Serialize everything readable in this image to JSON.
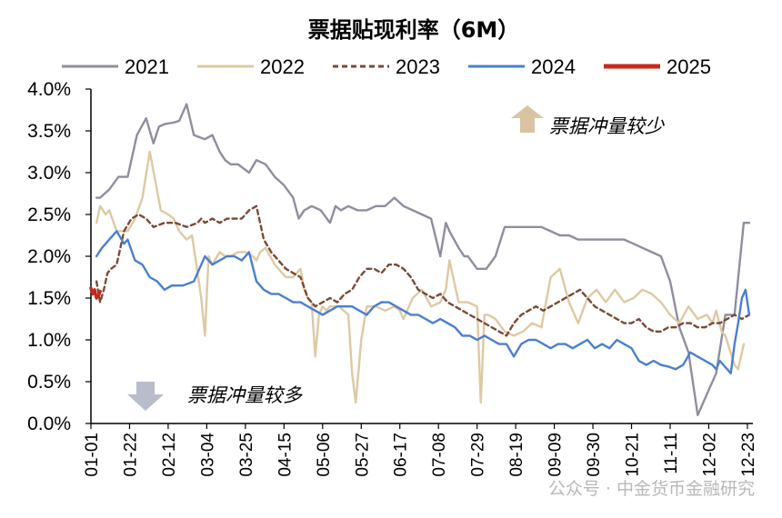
{
  "watermark": "公众号 · 中金货币金融研究",
  "chart_data": {
    "type": "line",
    "title": "票据贴现利率（6M）",
    "xlabel": "",
    "ylabel": "",
    "ylim": [
      0,
      4
    ],
    "yticks": [
      "0.0%",
      "0.5%",
      "1.0%",
      "1.5%",
      "2.0%",
      "2.5%",
      "3.0%",
      "3.5%",
      "4.0%"
    ],
    "x_categories": [
      "01-01",
      "01-22",
      "02-12",
      "03-04",
      "03-25",
      "04-15",
      "05-06",
      "05-27",
      "06-17",
      "07-08",
      "07-29",
      "08-19",
      "09-09",
      "09-30",
      "10-21",
      "11-11",
      "12-02",
      "12-23"
    ],
    "legend_position": "top",
    "grid": false,
    "annotations": [
      {
        "text": "票据冲量较少",
        "arrow": "up",
        "color": "#d9c3a0"
      },
      {
        "text": "票据冲量较多",
        "arrow": "down",
        "color": "#b8bccb"
      }
    ],
    "series": [
      {
        "name": "2021",
        "color": "#8e8e9e",
        "style": "solid",
        "x": [
          3,
          5,
          10,
          15,
          20,
          25,
          30,
          34,
          37,
          40,
          45,
          48,
          52,
          56,
          62,
          66,
          70,
          73,
          76,
          80,
          86,
          90,
          95,
          100,
          105,
          110,
          113,
          116,
          120,
          125,
          130,
          133,
          136,
          140,
          145,
          150,
          155,
          160,
          165,
          170,
          175,
          180,
          185,
          190,
          193,
          195,
          200,
          203,
          205,
          210,
          215,
          220,
          225,
          230,
          235,
          240,
          245,
          250,
          255,
          260,
          265,
          270,
          275,
          280,
          285,
          290,
          295,
          300,
          305,
          310,
          315,
          320,
          325,
          330,
          335,
          340,
          345,
          350,
          355,
          358
        ],
        "y": [
          2.7,
          2.7,
          2.8,
          2.95,
          2.95,
          3.45,
          3.65,
          3.35,
          3.55,
          3.58,
          3.6,
          3.62,
          3.82,
          3.45,
          3.4,
          3.45,
          3.25,
          3.15,
          3.1,
          3.1,
          3.0,
          3.15,
          3.1,
          2.95,
          2.85,
          2.7,
          2.45,
          2.55,
          2.6,
          2.55,
          2.4,
          2.6,
          2.55,
          2.6,
          2.55,
          2.55,
          2.6,
          2.6,
          2.7,
          2.6,
          2.55,
          2.5,
          2.45,
          2.0,
          2.4,
          2.3,
          2.1,
          2.0,
          2.0,
          1.85,
          1.85,
          2.0,
          2.35,
          2.35,
          2.35,
          2.35,
          2.35,
          2.3,
          2.25,
          2.25,
          2.2,
          2.2,
          2.2,
          2.2,
          2.2,
          2.2,
          2.15,
          2.1,
          2.05,
          2.0,
          1.7,
          1.15,
          0.85,
          0.1,
          0.35,
          0.6,
          1.3,
          1.3,
          2.4,
          2.4
        ]
      },
      {
        "name": "2022",
        "color": "#ddc9a3",
        "style": "solid",
        "x": [
          3,
          5,
          8,
          10,
          14,
          20,
          24,
          28,
          32,
          35,
          38,
          42,
          45,
          48,
          52,
          55,
          58,
          60,
          62,
          64,
          66,
          70,
          73,
          76,
          80,
          84,
          88,
          90,
          92,
          95,
          100,
          104,
          106,
          110,
          114,
          116,
          118,
          120,
          122,
          124,
          126,
          128,
          130,
          135,
          140,
          142,
          144,
          147,
          150,
          155,
          160,
          165,
          168,
          170,
          172,
          175,
          180,
          185,
          190,
          193,
          195,
          200,
          205,
          210,
          212,
          214,
          216,
          220,
          225,
          230,
          235,
          240,
          245,
          250,
          255,
          260,
          265,
          270,
          275,
          280,
          285,
          290,
          295,
          300,
          305,
          310,
          315,
          320,
          325,
          330,
          335,
          338,
          340,
          343,
          345,
          350,
          352,
          355
        ],
        "y": [
          2.4,
          2.6,
          2.5,
          2.55,
          2.3,
          2.3,
          2.45,
          2.7,
          3.25,
          2.9,
          2.55,
          2.5,
          2.45,
          2.3,
          2.2,
          2.25,
          1.8,
          1.5,
          1.05,
          2.0,
          1.9,
          2.05,
          2.0,
          2.0,
          2.05,
          2.05,
          2.0,
          1.95,
          2.05,
          2.1,
          1.9,
          1.8,
          1.75,
          1.75,
          1.85,
          1.6,
          1.5,
          1.45,
          0.8,
          1.3,
          1.4,
          1.35,
          1.4,
          1.4,
          1.3,
          0.6,
          0.25,
          1.0,
          1.4,
          1.4,
          1.35,
          1.4,
          1.35,
          1.25,
          1.35,
          1.5,
          1.6,
          1.4,
          1.45,
          1.6,
          1.95,
          1.45,
          1.45,
          1.4,
          0.25,
          1.3,
          1.3,
          1.25,
          1.1,
          1.05,
          1.1,
          1.2,
          1.15,
          1.75,
          1.85,
          1.45,
          1.2,
          1.5,
          1.6,
          1.45,
          1.6,
          1.45,
          1.5,
          1.6,
          1.55,
          1.45,
          1.3,
          1.2,
          1.4,
          1.25,
          1.3,
          1.2,
          1.35,
          1.1,
          1.05,
          0.7,
          0.65,
          0.95
        ]
      },
      {
        "name": "2023",
        "color": "#7a4a35",
        "style": "dashed",
        "x": [
          3,
          5,
          7,
          9,
          11,
          14,
          18,
          22,
          26,
          30,
          34,
          40,
          46,
          52,
          58,
          60,
          62,
          66,
          70,
          74,
          78,
          82,
          86,
          90,
          94,
          98,
          102,
          106,
          110,
          114,
          118,
          122,
          126,
          130,
          134,
          138,
          142,
          146,
          150,
          154,
          158,
          162,
          166,
          170,
          174,
          178,
          182,
          186,
          190,
          194,
          198,
          202,
          206,
          210,
          214,
          218,
          222,
          226,
          230,
          234,
          238,
          242,
          246,
          250,
          254,
          258,
          262,
          266,
          270,
          274,
          278,
          282,
          286,
          290,
          294,
          298,
          302,
          306,
          310,
          314,
          318,
          322,
          326,
          330,
          334,
          338,
          342,
          346,
          350,
          354,
          358
        ],
        "y": [
          1.7,
          1.45,
          1.6,
          1.8,
          1.85,
          1.9,
          2.3,
          2.45,
          2.5,
          2.45,
          2.35,
          2.4,
          2.4,
          2.35,
          2.4,
          2.45,
          2.4,
          2.45,
          2.4,
          2.45,
          2.45,
          2.45,
          2.55,
          2.6,
          2.2,
          2.05,
          1.95,
          1.85,
          1.8,
          1.75,
          1.5,
          1.4,
          1.45,
          1.5,
          1.45,
          1.55,
          1.6,
          1.75,
          1.85,
          1.85,
          1.8,
          1.9,
          1.9,
          1.85,
          1.75,
          1.6,
          1.55,
          1.5,
          1.55,
          1.45,
          1.4,
          1.35,
          1.3,
          1.25,
          1.2,
          1.15,
          1.1,
          1.05,
          1.2,
          1.3,
          1.35,
          1.4,
          1.35,
          1.4,
          1.45,
          1.5,
          1.55,
          1.6,
          1.5,
          1.4,
          1.35,
          1.3,
          1.25,
          1.2,
          1.2,
          1.25,
          1.15,
          1.1,
          1.1,
          1.15,
          1.15,
          1.2,
          1.2,
          1.15,
          1.15,
          1.2,
          1.2,
          1.25,
          1.3,
          1.25,
          1.3
        ]
      },
      {
        "name": "2024",
        "color": "#4a7fcf",
        "style": "solid",
        "x": [
          3,
          6,
          10,
          14,
          18,
          20,
          24,
          28,
          32,
          36,
          40,
          44,
          50,
          56,
          60,
          62,
          66,
          70,
          74,
          78,
          82,
          86,
          90,
          94,
          98,
          102,
          106,
          110,
          114,
          118,
          122,
          126,
          130,
          134,
          138,
          142,
          146,
          150,
          154,
          158,
          162,
          166,
          170,
          174,
          178,
          182,
          186,
          190,
          194,
          198,
          202,
          206,
          210,
          214,
          218,
          222,
          226,
          230,
          234,
          238,
          242,
          246,
          250,
          254,
          258,
          262,
          266,
          270,
          274,
          278,
          282,
          286,
          290,
          294,
          298,
          302,
          306,
          310,
          314,
          318,
          322,
          326,
          330,
          334,
          338,
          340,
          342,
          344,
          346,
          348,
          350,
          352,
          354,
          356,
          358
        ],
        "y": [
          2.0,
          2.1,
          2.2,
          2.3,
          2.15,
          2.2,
          1.95,
          1.9,
          1.75,
          1.7,
          1.6,
          1.65,
          1.65,
          1.7,
          1.9,
          2.0,
          1.9,
          1.95,
          2.0,
          2.0,
          1.95,
          2.05,
          1.7,
          1.6,
          1.55,
          1.55,
          1.5,
          1.45,
          1.45,
          1.4,
          1.35,
          1.3,
          1.35,
          1.4,
          1.4,
          1.4,
          1.35,
          1.3,
          1.4,
          1.45,
          1.45,
          1.4,
          1.35,
          1.3,
          1.3,
          1.25,
          1.2,
          1.25,
          1.2,
          1.15,
          1.05,
          1.05,
          1.0,
          1.05,
          1.0,
          0.95,
          0.95,
          0.8,
          0.95,
          1.0,
          1.0,
          0.95,
          0.9,
          0.95,
          0.95,
          0.9,
          0.95,
          1.0,
          0.9,
          0.95,
          0.9,
          1.0,
          0.95,
          0.9,
          0.75,
          0.7,
          0.75,
          0.7,
          0.68,
          0.65,
          0.7,
          0.85,
          0.8,
          0.75,
          0.7,
          0.65,
          0.75,
          0.7,
          0.65,
          0.6,
          0.95,
          1.2,
          1.5,
          1.6,
          1.3
        ]
      },
      {
        "name": "2025",
        "color": "#c8281e",
        "style": "solid",
        "x": [
          0,
          1,
          2,
          3,
          4,
          5
        ],
        "y": [
          1.62,
          1.55,
          1.6,
          1.5,
          1.52,
          1.58
        ]
      }
    ]
  }
}
